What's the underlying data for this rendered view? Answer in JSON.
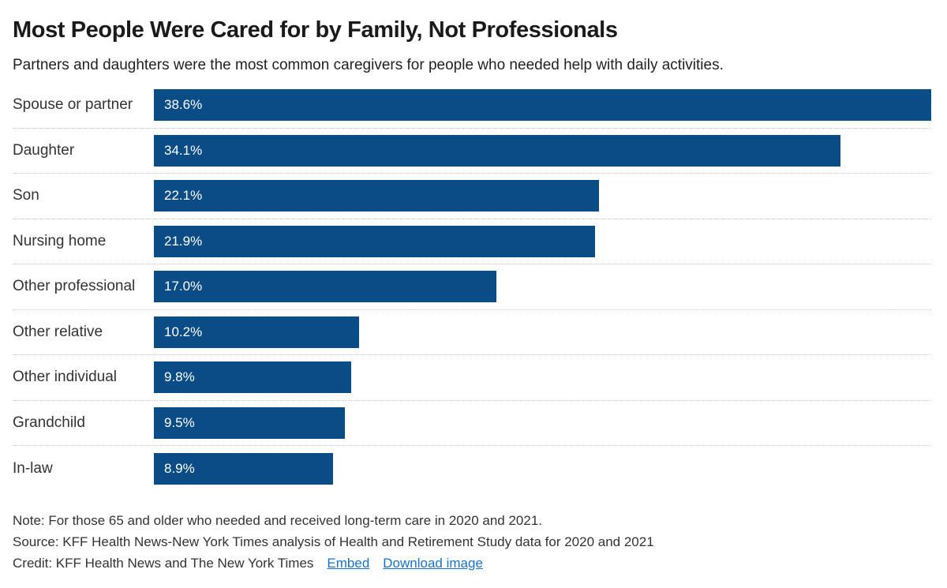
{
  "title": "Most People Were Cared for by Family, Not Professionals",
  "subtitle": "Partners and daughters were the most common caregivers for people who needed help with daily activities.",
  "chart_data": {
    "type": "bar",
    "orientation": "horizontal",
    "title": "Most People Were Cared for by Family, Not Professionals",
    "xlabel": "",
    "ylabel": "",
    "categories": [
      "Spouse or partner",
      "Daughter",
      "Son",
      "Nursing home",
      "Other professional",
      "Other relative",
      "Other individual",
      "Grandchild",
      "In-law"
    ],
    "values": [
      38.6,
      34.1,
      22.1,
      21.9,
      17.0,
      10.2,
      9.8,
      9.5,
      8.9
    ],
    "value_labels": [
      "38.6%",
      "34.1%",
      "22.1%",
      "21.9%",
      "17.0%",
      "10.2%",
      "9.8%",
      "9.5%",
      "8.9%"
    ],
    "xlim": [
      0,
      38.6
    ],
    "grid": false,
    "legend": false,
    "bar_color": "#0a4d86",
    "value_label_position": "inside-left"
  },
  "footer": {
    "note": "Note: For those 65 and older who needed and received long-term care in 2020 and 2021.",
    "source": "Source: KFF Health News-New York Times analysis of Health and Retirement Study data for 2020 and 2021",
    "credit": "Credit: KFF Health News and The New York Times",
    "links": [
      {
        "label": "Embed"
      },
      {
        "label": "Download image"
      }
    ],
    "link_color": "#1673c8"
  }
}
